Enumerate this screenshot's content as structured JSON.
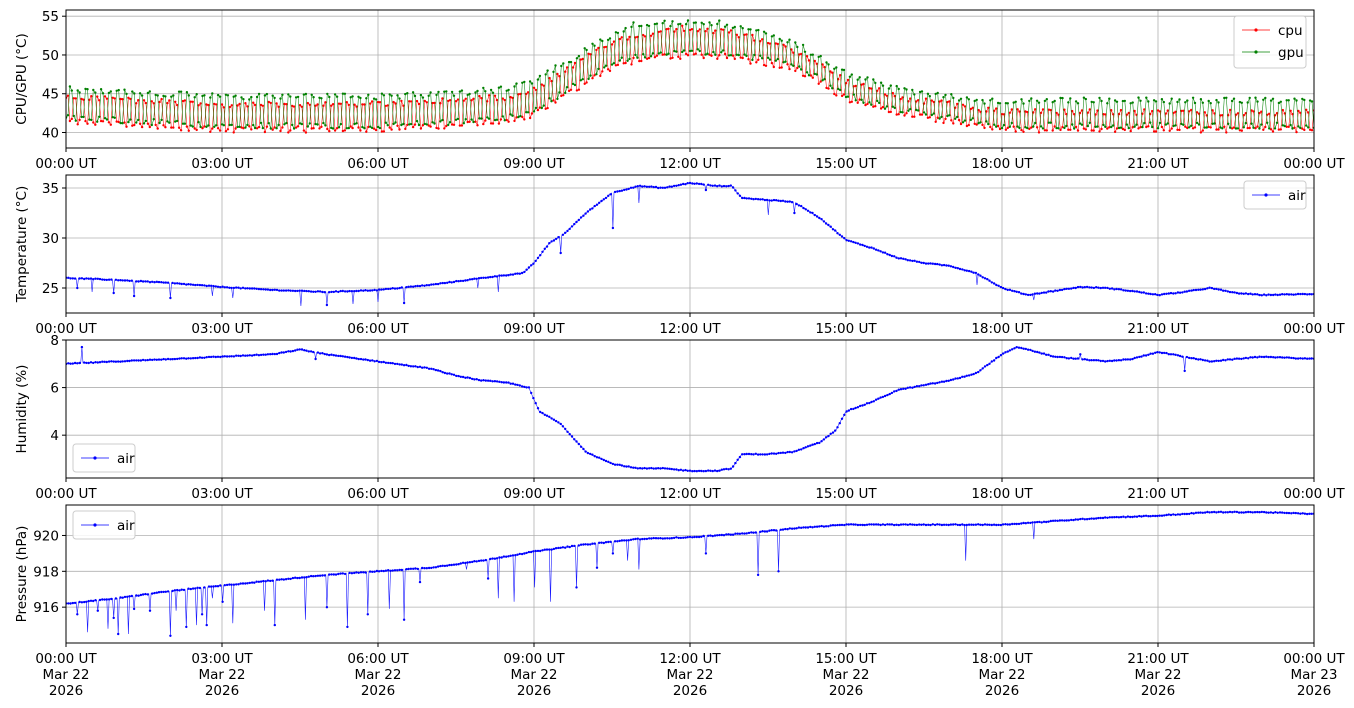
{
  "chart_data": [
    {
      "type": "line",
      "ylabel": "CPU/GPU (°C)",
      "ylim": [
        38.0,
        55.8
      ],
      "yticks": [
        40,
        45,
        50,
        55
      ],
      "xlim": [
        "00:00",
        "24:00"
      ],
      "xticks": [
        "00:00 UT",
        "03:00 UT",
        "06:00 UT",
        "09:00 UT",
        "12:00 UT",
        "15:00 UT",
        "18:00 UT",
        "21:00 UT",
        "00:00 UT"
      ],
      "grid": true,
      "legend": "top-right",
      "series": [
        {
          "name": "cpu",
          "color": "#ff0000",
          "x_hours": [
            0,
            1.5,
            3,
            4.5,
            6,
            7.5,
            8.5,
            9,
            9.5,
            10,
            10.5,
            11,
            11.5,
            12,
            12.5,
            13,
            13.5,
            14,
            14.5,
            15,
            15.5,
            16,
            16.5,
            17,
            17.5,
            18,
            19,
            20,
            21,
            22,
            23,
            24
          ],
          "low": [
            41,
            40.5,
            40,
            40,
            40,
            40.5,
            41,
            42,
            44,
            46,
            48,
            49,
            49.5,
            49.5,
            49.5,
            49,
            48.5,
            48,
            46,
            44,
            43,
            42,
            41.5,
            41,
            40.5,
            40,
            40,
            40,
            40,
            40,
            40,
            40
          ],
          "high": [
            45,
            44.5,
            44,
            44,
            44,
            44.5,
            45,
            46,
            48,
            50,
            52,
            53,
            53.5,
            54,
            53.5,
            53,
            52,
            51,
            49,
            47,
            46,
            45,
            44.5,
            44,
            43.5,
            43,
            43,
            43,
            43,
            43,
            43,
            43
          ]
        },
        {
          "name": "gpu",
          "color": "#008000",
          "x_hours": [
            0,
            1.5,
            3,
            4.5,
            6,
            7.5,
            8.5,
            9,
            9.5,
            10,
            10.5,
            11,
            11.5,
            12,
            12.5,
            13,
            13.5,
            14,
            14.5,
            15,
            15.5,
            16,
            16.5,
            17,
            17.5,
            18,
            19,
            20,
            21,
            22,
            23,
            24
          ],
          "low": [
            41.5,
            41,
            40.5,
            40.5,
            40.5,
            41,
            41.5,
            42.5,
            44.5,
            46.5,
            48.5,
            49.5,
            50,
            50,
            50,
            49.5,
            49,
            48.5,
            46.5,
            44.5,
            43.5,
            42.5,
            42,
            41.5,
            41,
            40.5,
            40.5,
            40.5,
            40.5,
            40.5,
            40.5,
            40.5
          ],
          "high": [
            46,
            45.5,
            45,
            45,
            45,
            45.5,
            46,
            47,
            49,
            51,
            53,
            54.5,
            54.5,
            54.5,
            54.5,
            54,
            53,
            52,
            50,
            48,
            47,
            46,
            45.5,
            45,
            44.5,
            44.5,
            44.5,
            44.5,
            44.5,
            44.5,
            44.5,
            44.5
          ]
        }
      ]
    },
    {
      "type": "line",
      "ylabel": "Temperature (°C)",
      "ylim": [
        22.5,
        36.3
      ],
      "yticks": [
        25,
        30,
        35
      ],
      "xticks": [
        "00:00 UT",
        "03:00 UT",
        "06:00 UT",
        "09:00 UT",
        "12:00 UT",
        "15:00 UT",
        "18:00 UT",
        "21:00 UT",
        "00:00 UT"
      ],
      "grid": true,
      "legend": "top-right",
      "series": [
        {
          "name": "air",
          "color": "#0000ff",
          "x_hours": [
            0,
            1,
            2,
            3,
            4,
            5,
            6,
            7,
            8,
            8.8,
            9,
            9.3,
            9.6,
            10,
            10.5,
            11,
            11.5,
            12,
            12.5,
            12.8,
            13,
            13.5,
            14,
            14.5,
            15,
            15.5,
            16,
            16.5,
            17,
            17.5,
            18,
            18.5,
            19,
            19.5,
            20,
            20.5,
            21,
            21.5,
            22,
            22.5,
            23,
            24
          ],
          "values": [
            26,
            25.8,
            25.5,
            25.1,
            24.8,
            24.6,
            24.8,
            25.3,
            26,
            26.5,
            27.5,
            29.5,
            30.5,
            32.5,
            34.5,
            35.2,
            35,
            35.5,
            35.2,
            35.2,
            34,
            33.8,
            33.6,
            32,
            29.8,
            29,
            28,
            27.5,
            27.2,
            26.5,
            25,
            24.3,
            24.7,
            25.1,
            25.0,
            24.7,
            24.3,
            24.6,
            25,
            24.5,
            24.3,
            24.4
          ],
          "dips": [
            [
              0.2,
              25.0
            ],
            [
              0.5,
              24.6
            ],
            [
              0.9,
              24.5
            ],
            [
              1.3,
              24.2
            ],
            [
              2.0,
              24.0
            ],
            [
              2.8,
              24.2
            ],
            [
              3.2,
              24.0
            ],
            [
              4.5,
              23.2
            ],
            [
              5.0,
              23.3
            ],
            [
              5.5,
              23.4
            ],
            [
              6.0,
              23.6
            ],
            [
              6.5,
              23.5
            ],
            [
              7.9,
              25.0
            ],
            [
              8.3,
              24.6
            ],
            [
              9.5,
              28.5
            ],
            [
              10.5,
              31.0
            ],
            [
              11.0,
              33.5
            ],
            [
              12.3,
              34.8
            ],
            [
              13.5,
              32.3
            ],
            [
              14.0,
              32.5
            ],
            [
              17.5,
              25.3
            ],
            [
              18.6,
              23.8
            ]
          ]
        }
      ]
    },
    {
      "type": "line",
      "ylabel": "Humidity (%)",
      "ylim": [
        2.2,
        8.0
      ],
      "yticks": [
        4,
        6,
        8
      ],
      "xticks": [
        "00:00 UT",
        "03:00 UT",
        "06:00 UT",
        "09:00 UT",
        "12:00 UT",
        "15:00 UT",
        "18:00 UT",
        "21:00 UT",
        "00:00 UT"
      ],
      "grid": true,
      "legend": "lower-left",
      "series": [
        {
          "name": "air",
          "color": "#0000ff",
          "x_hours": [
            0,
            1,
            2,
            3,
            4,
            4.5,
            5,
            6,
            7,
            7.5,
            8,
            8.5,
            8.9,
            9.1,
            9.5,
            10,
            10.5,
            11,
            11.5,
            12,
            12.5,
            12.8,
            13,
            13.5,
            14,
            14.5,
            14.8,
            15,
            15.5,
            16,
            16.5,
            17,
            17.5,
            18,
            18.3,
            18.5,
            19,
            19.5,
            20,
            20.5,
            21,
            21.5,
            22,
            22.5,
            23,
            24
          ],
          "values": [
            7.0,
            7.1,
            7.2,
            7.3,
            7.4,
            7.6,
            7.4,
            7.1,
            6.8,
            6.5,
            6.3,
            6.2,
            6.0,
            5.0,
            4.5,
            3.3,
            2.8,
            2.6,
            2.6,
            2.5,
            2.5,
            2.6,
            3.2,
            3.2,
            3.3,
            3.7,
            4.2,
            5.0,
            5.4,
            5.9,
            6.1,
            6.3,
            6.6,
            7.4,
            7.7,
            7.6,
            7.3,
            7.2,
            7.1,
            7.2,
            7.5,
            7.3,
            7.1,
            7.2,
            7.3,
            7.2
          ],
          "dips": [
            [
              0.3,
              7.7
            ],
            [
              4.8,
              7.2
            ],
            [
              19.5,
              7.4
            ],
            [
              21.5,
              6.7
            ]
          ]
        }
      ]
    },
    {
      "type": "line",
      "ylabel": "Pressure (hPa)",
      "ylim": [
        914.0,
        921.7
      ],
      "yticks": [
        916,
        918,
        920
      ],
      "xticks": [
        "00:00 UT\nMar 22\n2026",
        "03:00 UT\nMar 22\n2026",
        "06:00 UT\nMar 22\n2026",
        "09:00 UT\nMar 22\n2026",
        "12:00 UT\nMar 22\n2026",
        "15:00 UT\nMar 22\n2026",
        "18:00 UT\nMar 22\n2026",
        "21:00 UT\nMar 22\n2026",
        "00:00 UT\nMar 23\n2026"
      ],
      "grid": true,
      "legend": "top-left",
      "series": [
        {
          "name": "air",
          "color": "#0000ff",
          "x_hours": [
            0,
            1,
            2,
            3,
            4,
            5,
            6,
            7,
            8,
            9,
            10,
            11,
            12,
            13,
            14,
            15,
            16,
            17,
            18,
            19,
            20,
            21,
            22,
            23,
            24
          ],
          "values": [
            916.2,
            916.5,
            916.9,
            917.2,
            917.5,
            917.8,
            918.0,
            918.2,
            918.6,
            919.1,
            919.5,
            919.8,
            919.9,
            920.1,
            920.4,
            920.6,
            920.6,
            920.6,
            920.6,
            920.8,
            921.0,
            921.1,
            921.3,
            921.3,
            921.2
          ],
          "dips": [
            [
              0.2,
              915.6
            ],
            [
              0.4,
              914.6
            ],
            [
              0.6,
              915.8
            ],
            [
              0.8,
              914.8
            ],
            [
              0.9,
              915.4
            ],
            [
              1.0,
              914.5
            ],
            [
              1.2,
              914.5
            ],
            [
              1.3,
              915.9
            ],
            [
              1.6,
              915.8
            ],
            [
              2.0,
              914.4
            ],
            [
              2.1,
              915.8
            ],
            [
              2.3,
              914.9
            ],
            [
              2.5,
              915.0
            ],
            [
              2.6,
              915.6
            ],
            [
              2.7,
              915.0
            ],
            [
              2.8,
              916.5
            ],
            [
              3.0,
              916.3
            ],
            [
              3.2,
              915.1
            ],
            [
              3.8,
              915.8
            ],
            [
              4.0,
              915.0
            ],
            [
              4.6,
              915.3
            ],
            [
              5.0,
              916.0
            ],
            [
              5.4,
              914.9
            ],
            [
              5.8,
              915.6
            ],
            [
              6.2,
              915.9
            ],
            [
              6.5,
              915.3
            ],
            [
              6.8,
              917.4
            ],
            [
              7.7,
              918.1
            ],
            [
              8.1,
              917.6
            ],
            [
              8.3,
              916.5
            ],
            [
              8.6,
              916.3
            ],
            [
              9.0,
              917.1
            ],
            [
              9.3,
              916.3
            ],
            [
              9.8,
              917.1
            ],
            [
              10.2,
              918.2
            ],
            [
              10.5,
              919.0
            ],
            [
              10.8,
              918.6
            ],
            [
              11.0,
              918.1
            ],
            [
              12.3,
              919.0
            ],
            [
              13.3,
              917.8
            ],
            [
              13.7,
              918.0
            ],
            [
              17.3,
              918.6
            ],
            [
              18.6,
              919.8
            ]
          ]
        }
      ]
    }
  ]
}
